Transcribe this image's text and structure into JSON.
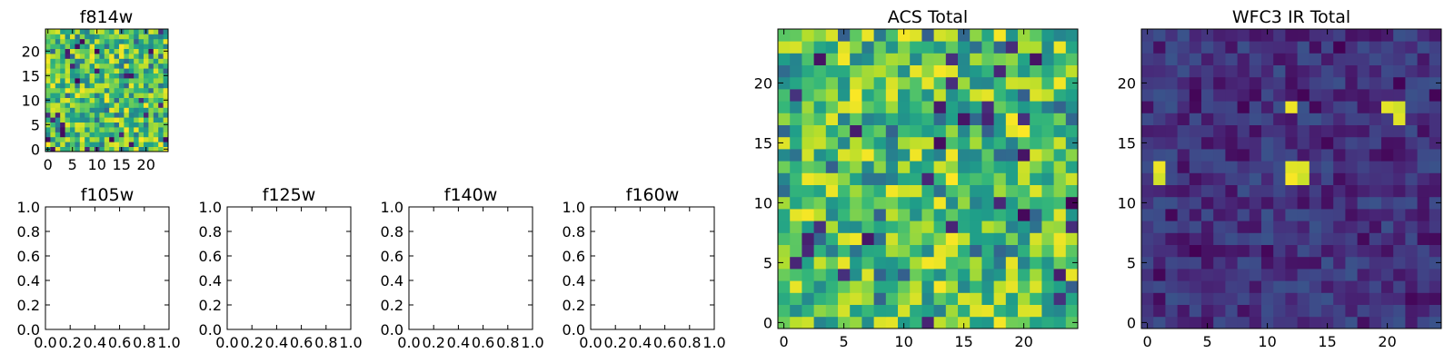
{
  "colormap": "viridis",
  "colors": {
    "axis": "#000000",
    "background": "#ffffff"
  },
  "chart_data": [
    {
      "id": "f814w",
      "type": "heatmap",
      "title": "f814w",
      "grid": "25x25",
      "pattern": "noise-high",
      "xticks": [
        "0",
        "5",
        "10",
        "15",
        "20"
      ],
      "yticks": [
        "0",
        "5",
        "10",
        "15",
        "20"
      ],
      "xlim": [
        -0.5,
        24.5
      ],
      "ylim": [
        -0.5,
        24.5
      ]
    },
    {
      "id": "f105w",
      "type": "empty",
      "title": "f105w",
      "xticks": [
        "0.0",
        "0.2",
        "0.4",
        "0.6",
        "0.8",
        "1.0"
      ],
      "yticks": [
        "0.0",
        "0.2",
        "0.4",
        "0.6",
        "0.8",
        "1.0"
      ],
      "xlim": [
        0,
        1
      ],
      "ylim": [
        0,
        1
      ]
    },
    {
      "id": "f125w",
      "type": "empty",
      "title": "f125w",
      "xticks": [
        "0.0",
        "0.2",
        "0.4",
        "0.6",
        "0.8",
        "1.0"
      ],
      "yticks": [
        "0.0",
        "0.2",
        "0.4",
        "0.6",
        "0.8",
        "1.0"
      ],
      "xlim": [
        0,
        1
      ],
      "ylim": [
        0,
        1
      ]
    },
    {
      "id": "f140w",
      "type": "empty",
      "title": "f140w",
      "xticks": [
        "0.0",
        "0.2",
        "0.4",
        "0.6",
        "0.8",
        "1.0"
      ],
      "yticks": [
        "0.0",
        "0.2",
        "0.4",
        "0.6",
        "0.8",
        "1.0"
      ],
      "xlim": [
        0,
        1
      ],
      "ylim": [
        0,
        1
      ]
    },
    {
      "id": "f160w",
      "type": "empty",
      "title": "f160w",
      "xticks": [
        "0.0",
        "0.2",
        "0.4",
        "0.6",
        "0.8",
        "1.0"
      ],
      "yticks": [
        "0.0",
        "0.2",
        "0.4",
        "0.6",
        "0.8",
        "1.0"
      ],
      "xlim": [
        0,
        1
      ],
      "ylim": [
        0,
        1
      ]
    },
    {
      "id": "acs-total",
      "type": "heatmap",
      "title": "ACS Total",
      "grid": "25x25",
      "pattern": "noise-high",
      "xticks": [
        "0",
        "5",
        "10",
        "15",
        "20"
      ],
      "yticks": [
        "0",
        "5",
        "10",
        "15",
        "20"
      ],
      "xlim": [
        -0.5,
        24.5
      ],
      "ylim": [
        -0.5,
        24.5
      ]
    },
    {
      "id": "wfc3-ir-total",
      "type": "heatmap",
      "title": "WFC3 IR Total",
      "grid": "25x25",
      "pattern": "noise-low-with-bright-spots",
      "bright_spots": [
        {
          "x": 1,
          "y": 12
        },
        {
          "x": 1,
          "y": 13
        },
        {
          "x": 12,
          "y": 18
        },
        {
          "x": 12,
          "y": 12
        },
        {
          "x": 13,
          "y": 12
        },
        {
          "x": 12,
          "y": 13
        },
        {
          "x": 13,
          "y": 13
        },
        {
          "x": 21,
          "y": 17
        },
        {
          "x": 21,
          "y": 18
        },
        {
          "x": 20,
          "y": 18
        }
      ],
      "xticks": [
        "0",
        "5",
        "10",
        "15",
        "20"
      ],
      "yticks": [
        "0",
        "5",
        "10",
        "15",
        "20"
      ],
      "xlim": [
        -0.5,
        24.5
      ],
      "ylim": [
        -0.5,
        24.5
      ]
    }
  ]
}
